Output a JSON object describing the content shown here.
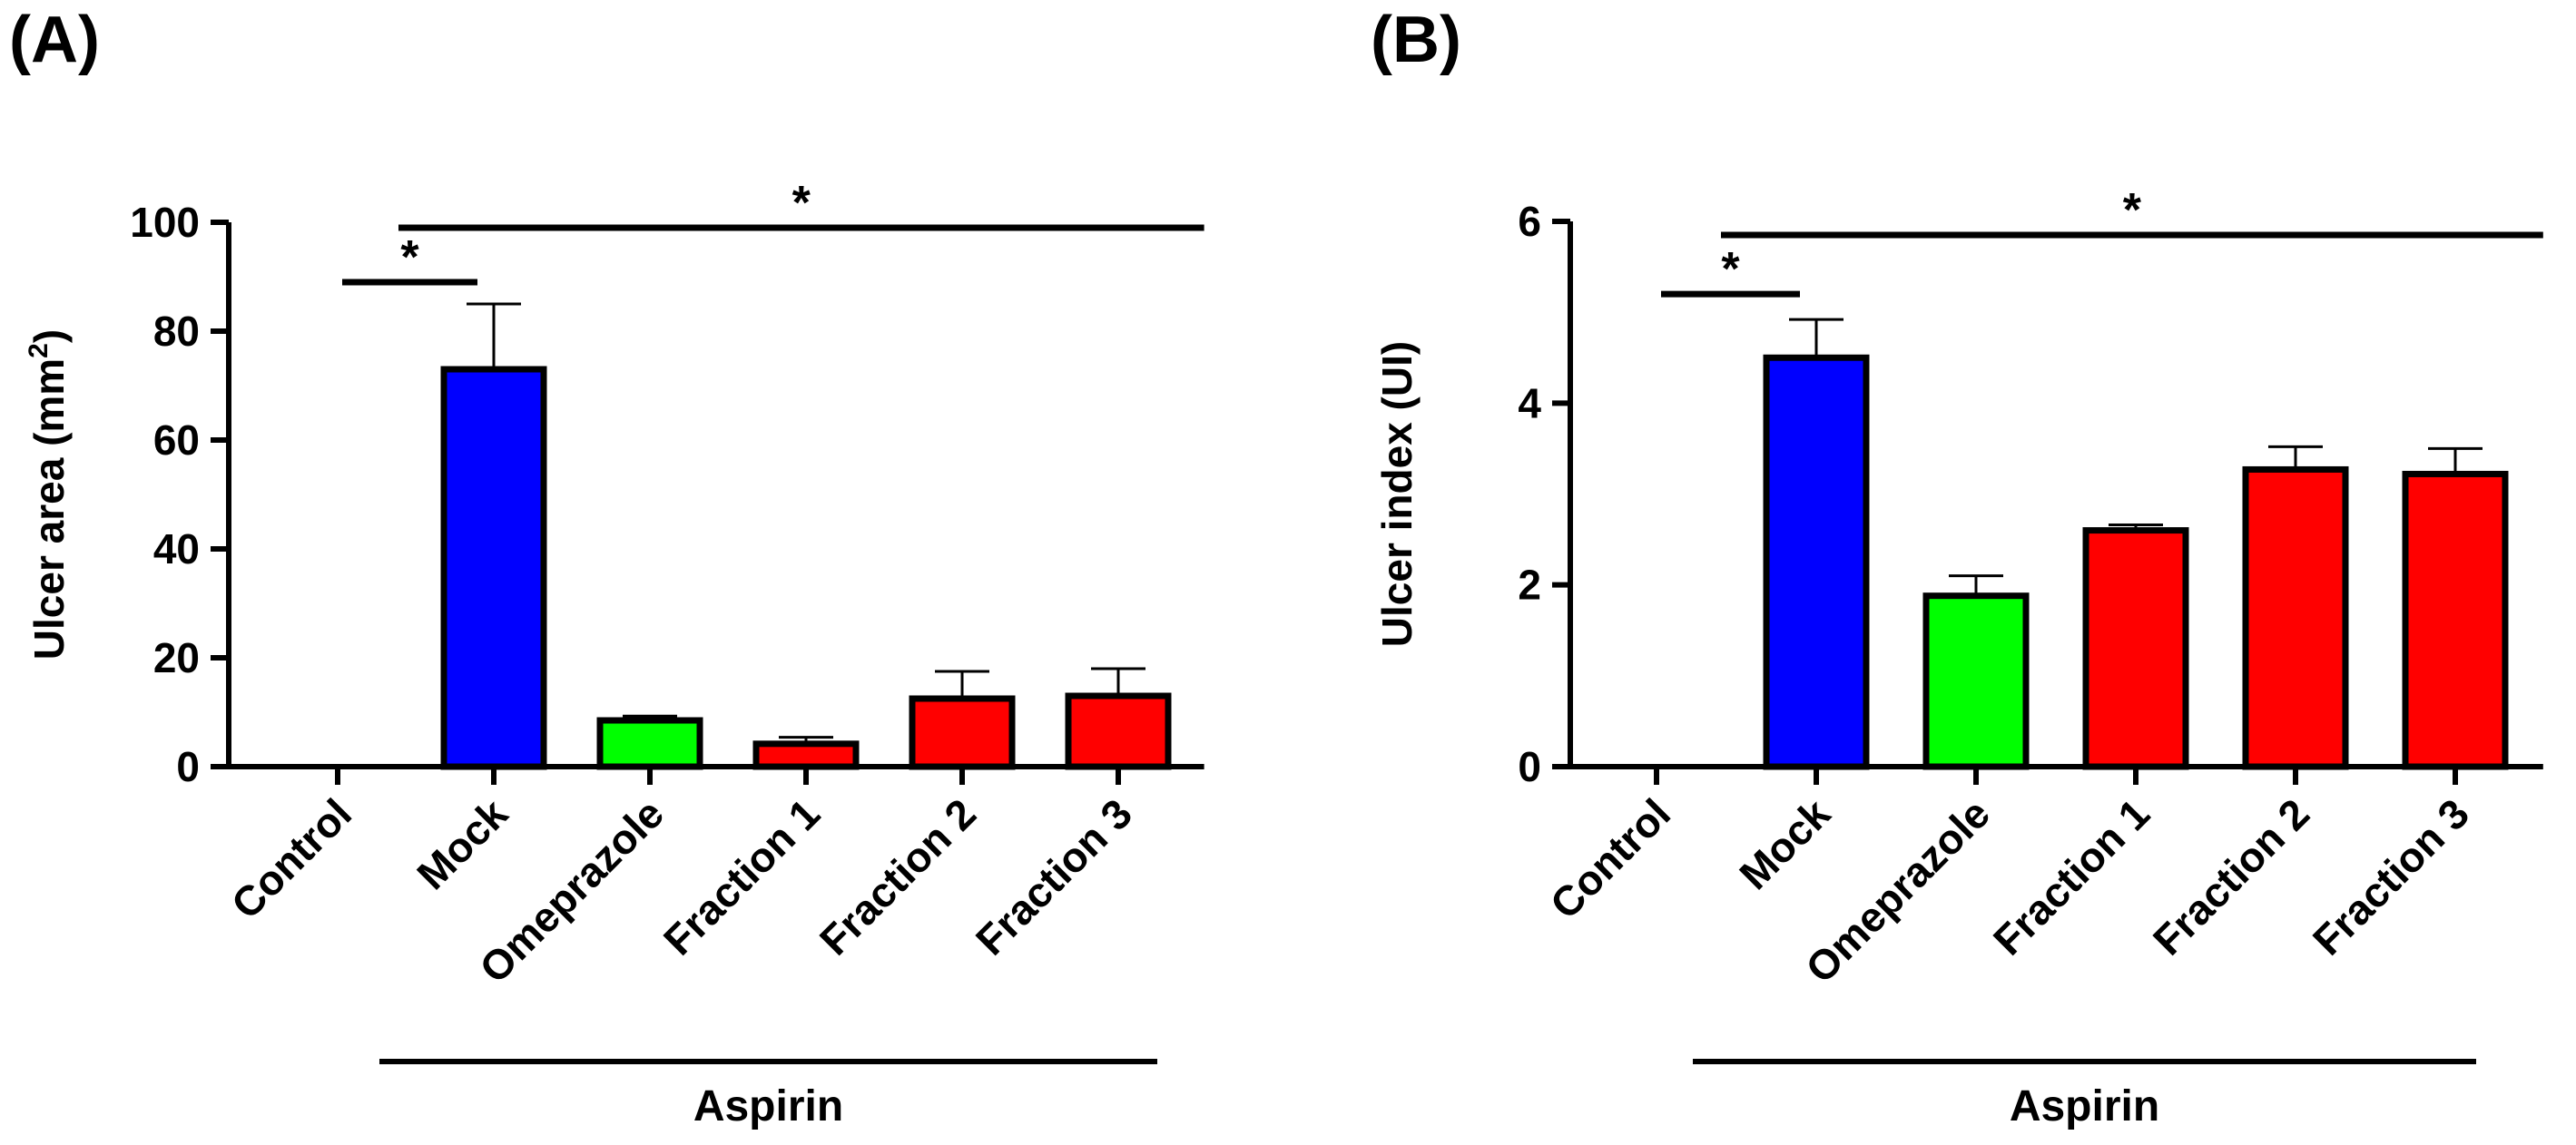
{
  "chart_data": [
    {
      "type": "bar",
      "panel_label": "(A)",
      "ylabel": "Ulcer area (mm",
      "ylabel_sup": "2",
      "ylabel_close": ")",
      "ylim": [
        0,
        100
      ],
      "yticks": [
        0,
        20,
        40,
        60,
        80,
        100
      ],
      "categories": [
        "Control",
        "Mock",
        "Omeprazole",
        "Fraction 1",
        "Fraction 2",
        "Fraction 3"
      ],
      "values": [
        0,
        73,
        8.5,
        4.2,
        12.5,
        13
      ],
      "errors": [
        0,
        12,
        0.8,
        1.2,
        5,
        5
      ],
      "colors": [
        "#ffffff",
        "#0000ff",
        "#00ff00",
        "#ff0000",
        "#ff0000",
        "#ff0000"
      ],
      "group_label": "Aspirin",
      "significance": [
        {
          "from": 0,
          "to": 1,
          "label": "*",
          "level": 89
        },
        {
          "from": 1,
          "to": 5,
          "label": "*",
          "level": 99
        }
      ]
    },
    {
      "type": "bar",
      "panel_label": "(B)",
      "ylabel": "Ulcer index (UI)",
      "ylim": [
        0,
        6
      ],
      "yticks": [
        0,
        2,
        4,
        6
      ],
      "categories": [
        "Control",
        "Mock",
        "Omeprazole",
        "Fraction 1",
        "Fraction 2",
        "Fraction 3"
      ],
      "values": [
        0,
        4.5,
        1.88,
        2.6,
        3.27,
        3.22
      ],
      "errors": [
        0,
        0.42,
        0.22,
        0.06,
        0.25,
        0.28
      ],
      "colors": [
        "#ffffff",
        "#0000ff",
        "#00ff00",
        "#ff0000",
        "#ff0000",
        "#ff0000"
      ],
      "group_label": "Aspirin",
      "significance": [
        {
          "from": 0,
          "to": 1,
          "label": "*",
          "level": 5.2
        },
        {
          "from": 1,
          "to": 5,
          "label": "*",
          "level": 5.85
        }
      ]
    }
  ]
}
